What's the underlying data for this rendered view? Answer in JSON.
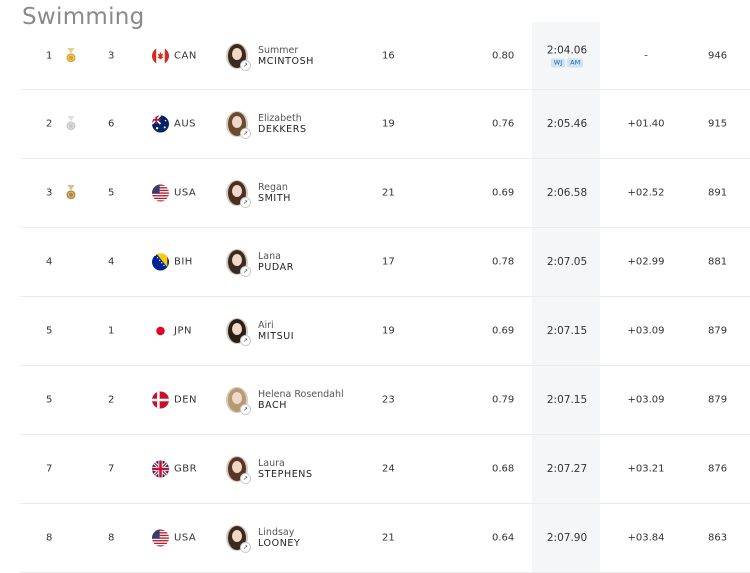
{
  "page": {
    "title": "Swimming"
  },
  "colors": {
    "gold": "#d9a520",
    "silver": "#c8c8c8",
    "bronze": "#b8863b",
    "time_bg": "#f5f6f8"
  },
  "rows": [
    {
      "rank": "1",
      "medal": "gold",
      "lane": "3",
      "noc": "CAN",
      "given": "Summer",
      "family": "MCINTOSH",
      "age": "16",
      "reaction": "0.80",
      "time": "2:04.06",
      "badges": [
        "WJ",
        "AM"
      ],
      "behind": "-",
      "points": "946"
    },
    {
      "rank": "2",
      "medal": "silver",
      "lane": "6",
      "noc": "AUS",
      "given": "Elizabeth",
      "family": "DEKKERS",
      "age": "19",
      "reaction": "0.76",
      "time": "2:05.46",
      "badges": [],
      "behind": "+01.40",
      "points": "915"
    },
    {
      "rank": "3",
      "medal": "bronze",
      "lane": "5",
      "noc": "USA",
      "given": "Regan",
      "family": "SMITH",
      "age": "21",
      "reaction": "0.69",
      "time": "2:06.58",
      "badges": [],
      "behind": "+02.52",
      "points": "891"
    },
    {
      "rank": "4",
      "medal": "",
      "lane": "4",
      "noc": "BIH",
      "given": "Lana",
      "family": "PUDAR",
      "age": "17",
      "reaction": "0.78",
      "time": "2:07.05",
      "badges": [],
      "behind": "+02.99",
      "points": "881"
    },
    {
      "rank": "5",
      "medal": "",
      "lane": "1",
      "noc": "JPN",
      "given": "Airi",
      "family": "MITSUI",
      "age": "19",
      "reaction": "0.69",
      "time": "2:07.15",
      "badges": [],
      "behind": "+03.09",
      "points": "879"
    },
    {
      "rank": "5",
      "medal": "",
      "lane": "2",
      "noc": "DEN",
      "given": "Helena Rosendahl",
      "family": "BACH",
      "age": "23",
      "reaction": "0.79",
      "time": "2:07.15",
      "badges": [],
      "behind": "+03.09",
      "points": "879"
    },
    {
      "rank": "7",
      "medal": "",
      "lane": "7",
      "noc": "GBR",
      "given": "Laura",
      "family": "STEPHENS",
      "age": "24",
      "reaction": "0.68",
      "time": "2:07.27",
      "badges": [],
      "behind": "+03.21",
      "points": "876"
    },
    {
      "rank": "8",
      "medal": "",
      "lane": "8",
      "noc": "USA",
      "given": "Lindsay",
      "family": "LOONEY",
      "age": "21",
      "reaction": "0.64",
      "time": "2:07.90",
      "badges": [],
      "behind": "+03.84",
      "points": "863"
    }
  ]
}
